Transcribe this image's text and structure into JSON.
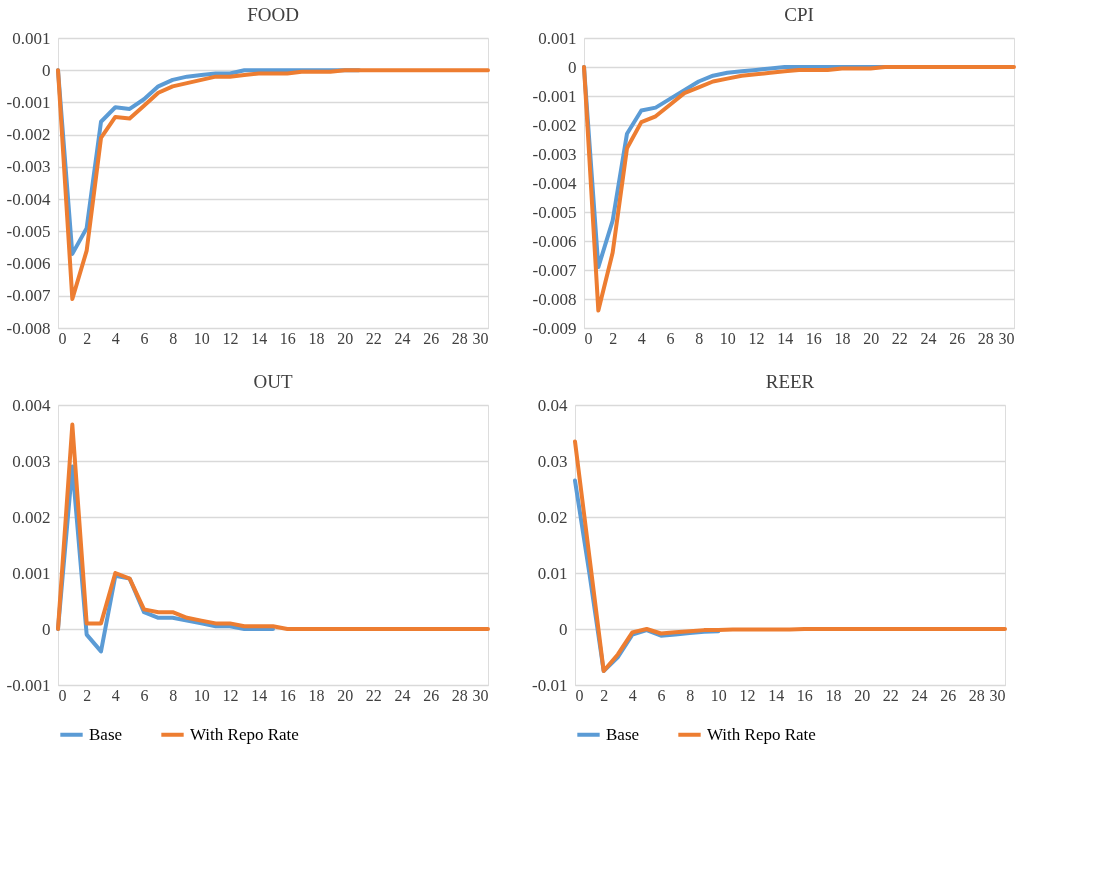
{
  "chart_data": [
    {
      "type": "line",
      "title": "FOOD",
      "x": [
        0,
        1,
        2,
        3,
        4,
        5,
        6,
        7,
        8,
        9,
        10,
        11,
        12,
        13,
        14,
        15,
        16,
        17,
        18,
        19,
        20,
        21,
        22,
        23,
        24,
        25,
        26,
        27,
        28,
        29,
        30
      ],
      "xlim": [
        0,
        30
      ],
      "xticks": [
        0,
        2,
        4,
        6,
        8,
        10,
        12,
        14,
        16,
        18,
        20,
        22,
        24,
        26,
        28,
        30
      ],
      "ylim": [
        -0.008,
        0.001
      ],
      "yticks": [
        -0.008,
        -0.007,
        -0.006,
        -0.005,
        -0.004,
        -0.003,
        -0.002,
        -0.001,
        0,
        0.001
      ],
      "grid": "y",
      "legend": false,
      "line_style": "solid",
      "marker": "none",
      "series": [
        {
          "color": "#5b9bd5",
          "values": [
            0,
            -0.0057,
            -0.0049,
            -0.0016,
            -0.00115,
            -0.0012,
            -0.0009,
            -0.0005,
            -0.0003,
            -0.0002,
            -0.00015,
            -0.0001,
            -0.0001,
            0,
            0,
            0,
            0,
            0,
            0,
            0,
            0,
            0,
            null,
            null,
            null,
            null,
            null,
            null,
            null,
            null,
            null
          ]
        },
        {
          "color": "#ed7d31",
          "values": [
            0,
            -0.0071,
            -0.0056,
            -0.0021,
            -0.00145,
            -0.0015,
            -0.0011,
            -0.0007,
            -0.0005,
            -0.0004,
            -0.0003,
            -0.0002,
            -0.0002,
            -0.00015,
            -0.0001,
            -0.0001,
            -0.0001,
            -5e-05,
            -5e-05,
            -5e-05,
            0,
            0,
            0,
            0,
            0,
            0,
            0,
            0,
            0,
            0,
            0
          ]
        }
      ]
    },
    {
      "type": "line",
      "title": "CPI",
      "x": [
        0,
        1,
        2,
        3,
        4,
        5,
        6,
        7,
        8,
        9,
        10,
        11,
        12,
        13,
        14,
        15,
        16,
        17,
        18,
        19,
        20,
        21,
        22,
        23,
        24,
        25,
        26,
        27,
        28,
        29,
        30
      ],
      "xlim": [
        0,
        30
      ],
      "xticks": [
        0,
        2,
        4,
        6,
        8,
        10,
        12,
        14,
        16,
        18,
        20,
        22,
        24,
        26,
        28,
        30
      ],
      "ylim": [
        -0.009,
        0.001
      ],
      "yticks": [
        -0.009,
        -0.008,
        -0.007,
        -0.006,
        -0.005,
        -0.004,
        -0.003,
        -0.002,
        -0.001,
        0,
        0.001
      ],
      "grid": "y",
      "legend": false,
      "line_style": "solid",
      "marker": "none",
      "series": [
        {
          "color": "#5b9bd5",
          "values": [
            0,
            -0.0069,
            -0.0053,
            -0.0023,
            -0.0015,
            -0.0014,
            -0.0011,
            -0.0008,
            -0.0005,
            -0.0003,
            -0.0002,
            -0.00015,
            -0.0001,
            -5e-05,
            0,
            0,
            0,
            0,
            0,
            0,
            0,
            0,
            0,
            0,
            null,
            null,
            null,
            null,
            null,
            null,
            null
          ]
        },
        {
          "color": "#ed7d31",
          "values": [
            0,
            -0.0084,
            -0.0064,
            -0.0028,
            -0.0019,
            -0.0017,
            -0.0013,
            -0.0009,
            -0.0007,
            -0.0005,
            -0.0004,
            -0.0003,
            -0.00025,
            -0.0002,
            -0.00015,
            -0.0001,
            -0.0001,
            -0.0001,
            -5e-05,
            -5e-05,
            -5e-05,
            0,
            0,
            0,
            0,
            0,
            0,
            0,
            0,
            0,
            0
          ]
        }
      ]
    },
    {
      "type": "line",
      "title": "OUT",
      "x": [
        0,
        1,
        2,
        3,
        4,
        5,
        6,
        7,
        8,
        9,
        10,
        11,
        12,
        13,
        14,
        15,
        16,
        17,
        18,
        19,
        20,
        21,
        22,
        23,
        24,
        25,
        26,
        27,
        28,
        29,
        30
      ],
      "xlim": [
        0,
        30
      ],
      "xticks": [
        0,
        2,
        4,
        6,
        8,
        10,
        12,
        14,
        16,
        18,
        20,
        22,
        24,
        26,
        28,
        30
      ],
      "ylim": [
        -0.001,
        0.004
      ],
      "yticks": [
        -0.001,
        0,
        0.001,
        0.002,
        0.003,
        0.004
      ],
      "grid": "y",
      "legend": "bottom",
      "line_style": "solid",
      "marker": "none",
      "series": [
        {
          "name": "Base",
          "color": "#5b9bd5",
          "values": [
            0,
            0.0029,
            -0.0001,
            -0.0004,
            0.00095,
            0.0009,
            0.0003,
            0.0002,
            0.0002,
            0.00015,
            0.0001,
            5e-05,
            5e-05,
            0,
            0,
            0,
            null,
            null,
            null,
            null,
            null,
            null,
            null,
            null,
            null,
            null,
            null,
            null,
            null,
            null,
            null
          ]
        },
        {
          "name": "With Repo Rate",
          "color": "#ed7d31",
          "values": [
            0,
            0.00365,
            0.0001,
            0.0001,
            0.001,
            0.0009,
            0.00035,
            0.0003,
            0.0003,
            0.0002,
            0.00015,
            0.0001,
            0.0001,
            5e-05,
            5e-05,
            5e-05,
            0,
            0,
            0,
            0,
            0,
            0,
            0,
            0,
            0,
            0,
            0,
            0,
            0,
            0,
            0
          ]
        }
      ]
    },
    {
      "type": "line",
      "title": "REER",
      "x": [
        0,
        1,
        2,
        3,
        4,
        5,
        6,
        7,
        8,
        9,
        10,
        11,
        12,
        13,
        14,
        15,
        16,
        17,
        18,
        19,
        20,
        21,
        22,
        23,
        24,
        25,
        26,
        27,
        28,
        29,
        30
      ],
      "xlim": [
        0,
        30
      ],
      "xticks": [
        0,
        2,
        4,
        6,
        8,
        10,
        12,
        14,
        16,
        18,
        20,
        22,
        24,
        26,
        28,
        30
      ],
      "ylim": [
        -0.01,
        0.04
      ],
      "yticks": [
        -0.01,
        0,
        0.01,
        0.02,
        0.03,
        0.04
      ],
      "grid": "y",
      "legend": "bottom",
      "line_style": "solid",
      "marker": "none",
      "series": [
        {
          "name": "Base",
          "color": "#5b9bd5",
          "values": [
            0.0265,
            0.01,
            -0.0075,
            -0.005,
            -0.001,
            -0.0002,
            -0.0012,
            -0.001,
            -0.0007,
            -0.0005,
            -0.0004,
            null,
            null,
            null,
            null,
            null,
            null,
            null,
            null,
            null,
            null,
            null,
            null,
            null,
            null,
            null,
            null,
            null,
            null,
            null,
            null
          ]
        },
        {
          "name": "With Repo Rate",
          "color": "#ed7d31",
          "values": [
            0.0335,
            0.013,
            -0.0075,
            -0.0045,
            -0.0006,
            0,
            -0.0008,
            -0.0006,
            -0.0004,
            -0.0002,
            -0.0002,
            -0.0001,
            -0.0001,
            -0.0001,
            -0.0001,
            -0.0001,
            0,
            0,
            0,
            0,
            0,
            0,
            0,
            0,
            0,
            0,
            0,
            0,
            0,
            0,
            0
          ]
        }
      ]
    }
  ]
}
